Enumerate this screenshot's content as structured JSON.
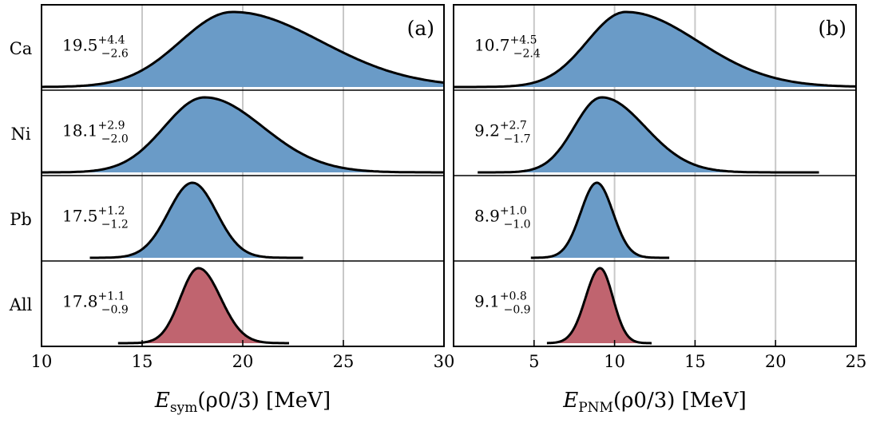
{
  "chart_data": [
    {
      "type": "area",
      "panel_label": "(a)",
      "xlabel_main": "E",
      "xlabel_sub": "sym",
      "xlabel_rest": "(ρ0/3) [MeV]",
      "xlim": [
        10,
        30
      ],
      "xticks": [
        10,
        15,
        20,
        25,
        30
      ],
      "tick_labels": [
        "10",
        "15",
        "20",
        "25",
        "30"
      ],
      "vlines": [
        15,
        20,
        25
      ],
      "grid": true,
      "series": [
        {
          "name": "Ca",
          "center": "19.5",
          "plus": "+4.4",
          "minus": "−2.6",
          "peak": 19.5,
          "sigma_minus": 2.6,
          "sigma_plus": 4.4,
          "range": [
            10,
            30
          ],
          "color": "#6a9bc7"
        },
        {
          "name": "Ni",
          "center": "18.1",
          "plus": "+2.9",
          "minus": "−2.0",
          "peak": 18.1,
          "sigma_minus": 2.0,
          "sigma_plus": 2.9,
          "range": [
            10,
            30
          ],
          "color": "#6a9bc7"
        },
        {
          "name": "Pb",
          "center": "17.5",
          "plus": "+1.2",
          "minus": "−1.2",
          "peak": 17.5,
          "sigma_minus": 1.2,
          "sigma_plus": 1.2,
          "range": [
            12.4,
            23.0
          ],
          "color": "#6a9bc7"
        },
        {
          "name": "All",
          "center": "17.8",
          "plus": "+1.1",
          "minus": "−0.9",
          "peak": 17.8,
          "sigma_minus": 0.9,
          "sigma_plus": 1.1,
          "range": [
            13.8,
            22.3
          ],
          "color": "#c0646f"
        }
      ]
    },
    {
      "type": "area",
      "panel_label": "(b)",
      "xlabel_main": "E",
      "xlabel_sub": "PNM",
      "xlabel_rest": "(ρ0/3) [MeV]",
      "xlim": [
        0,
        25
      ],
      "xticks": [
        5,
        10,
        15,
        20,
        25
      ],
      "tick_labels": [
        "5",
        "10",
        "15",
        "20",
        "25"
      ],
      "vlines": [
        5,
        10,
        15,
        20
      ],
      "grid": true,
      "series": [
        {
          "name": "Ca",
          "center": "10.7",
          "plus": "+4.5",
          "minus": "−2.4",
          "peak": 10.7,
          "sigma_minus": 2.4,
          "sigma_plus": 4.5,
          "range": [
            0,
            25
          ],
          "color": "#6a9bc7"
        },
        {
          "name": "Ni",
          "center": "9.2",
          "plus": "+2.7",
          "minus": "−1.7",
          "peak": 9.2,
          "sigma_minus": 1.7,
          "sigma_plus": 2.7,
          "range": [
            1.5,
            22.7
          ],
          "color": "#6a9bc7"
        },
        {
          "name": "Pb",
          "center": "8.9",
          "plus": "+1.0",
          "minus": "−1.0",
          "peak": 8.9,
          "sigma_minus": 1.0,
          "sigma_plus": 1.0,
          "range": [
            4.8,
            13.4
          ],
          "color": "#6a9bc7"
        },
        {
          "name": "All",
          "center": "9.1",
          "plus": "+0.8",
          "minus": "−0.9",
          "peak": 9.1,
          "sigma_minus": 0.9,
          "sigma_plus": 0.8,
          "range": [
            5.8,
            12.3
          ],
          "color": "#c0646f"
        }
      ]
    }
  ],
  "shared_zero_tick": "0"
}
